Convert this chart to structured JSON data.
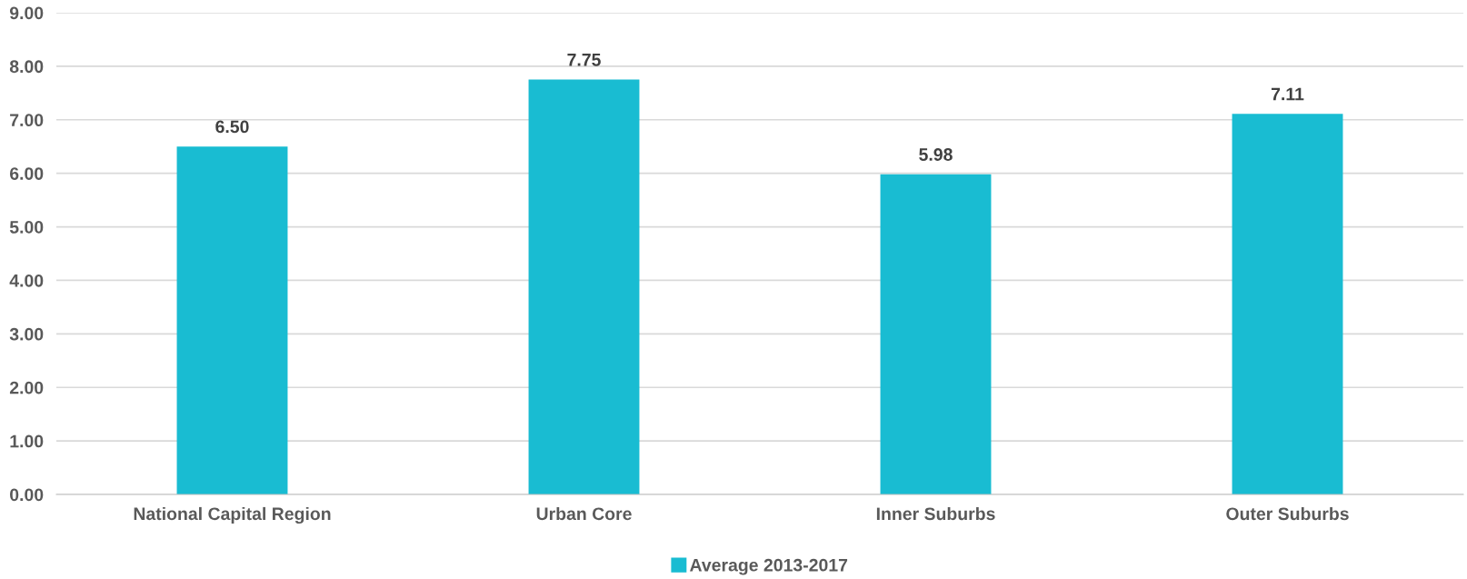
{
  "chart_data": {
    "type": "bar",
    "categories": [
      "National Capital Region",
      "Urban Core",
      "Inner Suburbs",
      "Outer Suburbs"
    ],
    "series": [
      {
        "name": "Average 2013-2017",
        "color": "#19bcd2",
        "values": [
          6.5,
          7.75,
          5.98,
          7.11
        ],
        "value_labels": [
          "6.50",
          "7.75",
          "5.98",
          "7.11"
        ]
      }
    ],
    "ylim": [
      0,
      9
    ],
    "yticks": [
      {
        "value": 0,
        "label": "0.00"
      },
      {
        "value": 1,
        "label": "1.00"
      },
      {
        "value": 2,
        "label": "2.00"
      },
      {
        "value": 3,
        "label": "3.00"
      },
      {
        "value": 4,
        "label": "4.00"
      },
      {
        "value": 5,
        "label": "5.00"
      },
      {
        "value": 6,
        "label": "6.00"
      },
      {
        "value": 7,
        "label": "7.00"
      },
      {
        "value": 8,
        "label": "8.00"
      },
      {
        "value": 9,
        "label": "9.00"
      }
    ],
    "grid": "y",
    "legend": "bottom"
  }
}
